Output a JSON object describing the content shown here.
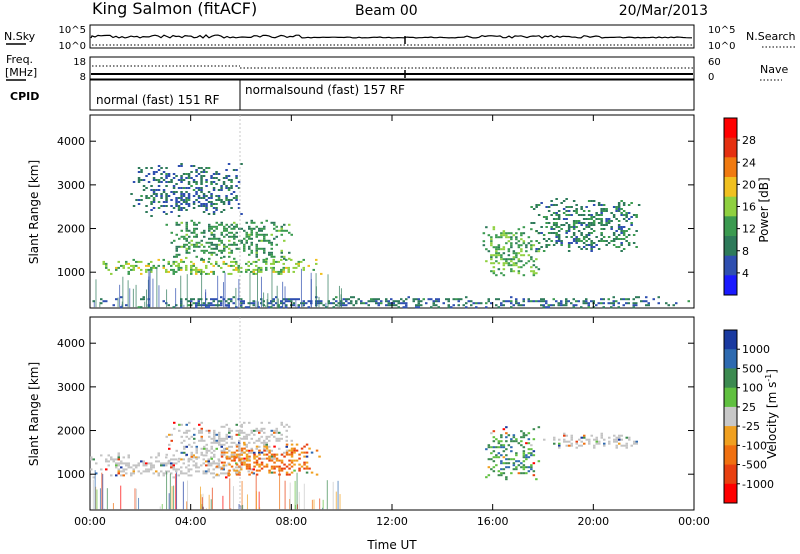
{
  "header": {
    "station": "King Salmon (fitACF)",
    "beam": "Beam 00",
    "date": "20/Mar/2013"
  },
  "status_panels": {
    "nsky_label": "N.Sky",
    "nsky_ticks": [
      "10^5",
      "10^0"
    ],
    "nsearch_label": "N.Search",
    "nsearch_ticks": [
      "10^5",
      "10^0"
    ],
    "freq_label_1": "Freq.",
    "freq_label_2": "[MHz]",
    "freq_ticks": [
      "18",
      "8"
    ],
    "nave_label": "Nave",
    "nave_ticks": [
      "60",
      "0"
    ],
    "cpid_label": "CPID",
    "cpid_segments": [
      {
        "label": "normal (fast) 151 RF",
        "start_hour": 0,
        "end_hour": 6
      },
      {
        "label": "normalsound (fast) 157 RF",
        "start_hour": 6,
        "end_hour": 24
      }
    ]
  },
  "chart_data": [
    {
      "type": "heatmap",
      "title": "",
      "xlabel": "Time UT",
      "ylabel": "Slant Range [km]",
      "x_ticks": [
        "00:00",
        "04:00",
        "08:00",
        "12:00",
        "16:00",
        "20:00",
        "00:00"
      ],
      "y_ticks": [
        "1000",
        "2000",
        "3000",
        "4000"
      ],
      "xlim_hours": [
        0,
        24
      ],
      "ylim_km": [
        180,
        4600
      ],
      "colorbar": {
        "label": "Power [dB]",
        "ticks": [
          "4",
          "8",
          "12",
          "16",
          "20",
          "24",
          "28"
        ],
        "range": [
          0,
          30
        ],
        "colors": [
          "#1a1aff",
          "#2f4fb0",
          "#2e7a5a",
          "#3b9a50",
          "#8fd040",
          "#f0c020",
          "#f07a10",
          "#e53010",
          "#ff0000"
        ]
      },
      "scatter_regions": [
        {
          "t0": 0.0,
          "t1": 9.2,
          "r0": 950,
          "r1": 1350,
          "value": 14,
          "note": "main band"
        },
        {
          "t0": 3.0,
          "t1": 8.0,
          "r0": 1300,
          "r1": 2200,
          "value": 10
        },
        {
          "t0": 1.5,
          "t1": 6.0,
          "r0": 2300,
          "r1": 3500,
          "value": 6
        },
        {
          "t0": 15.6,
          "t1": 17.8,
          "r0": 900,
          "r1": 2100,
          "value": 12
        },
        {
          "t0": 17.5,
          "t1": 21.8,
          "r0": 1500,
          "r1": 2700,
          "value": 8
        },
        {
          "t0": 0.0,
          "t1": 24.0,
          "r0": 200,
          "r1": 450,
          "value": 6,
          "note": "near range"
        }
      ]
    },
    {
      "type": "heatmap",
      "title": "",
      "xlabel": "Time UT",
      "ylabel": "Slant Range [km]",
      "x_ticks": [
        "00:00",
        "04:00",
        "08:00",
        "12:00",
        "16:00",
        "20:00",
        "00:00"
      ],
      "y_ticks": [
        "1000",
        "2000",
        "3000",
        "4000"
      ],
      "xlim_hours": [
        0,
        24
      ],
      "ylim_km": [
        180,
        4600
      ],
      "colorbar": {
        "label": "Velocity [m s",
        "label_sup": "-1",
        "label_end": "]",
        "ticks": [
          "1000",
          "500",
          "100",
          "25",
          "-25",
          "-100",
          "-500",
          "-1000"
        ],
        "colors": [
          "#1a3aa0",
          "#2e6ab0",
          "#3c8a50",
          "#60c040",
          "#c8c8c8",
          "#f0a020",
          "#f07010",
          "#e84010",
          "#ff0000"
        ]
      },
      "scatter_regions": [
        {
          "t0": 0.0,
          "t1": 6.5,
          "r0": 950,
          "r1": 1500,
          "value": "ground",
          "note": "grey ground scatter"
        },
        {
          "t0": 3.0,
          "t1": 8.0,
          "r0": 1300,
          "r1": 2200,
          "value": "ground"
        },
        {
          "t0": 5.0,
          "t1": 9.2,
          "r0": 1000,
          "r1": 1700,
          "value": -150
        },
        {
          "t0": 15.6,
          "t1": 17.8,
          "r0": 900,
          "r1": 2100,
          "value": 150
        },
        {
          "t0": 18.0,
          "t1": 21.8,
          "r0": 1600,
          "r1": 1950,
          "value": "ground"
        }
      ]
    }
  ]
}
